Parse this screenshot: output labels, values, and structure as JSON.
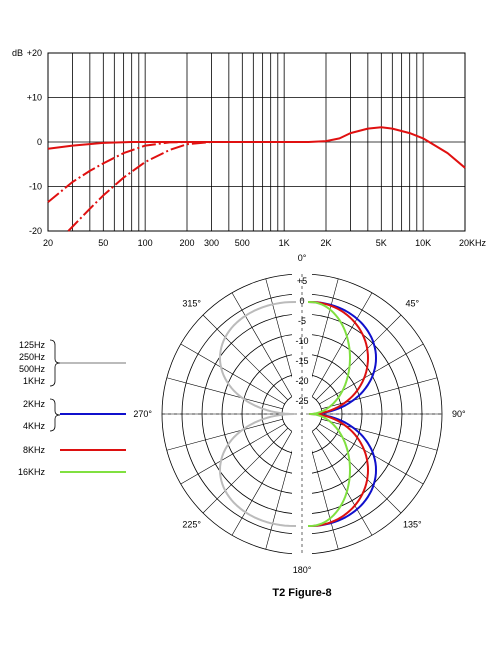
{
  "chart_data": [
    {
      "type": "line",
      "ylabel": "dB",
      "x_scale": "log",
      "xlim": [
        20,
        20000
      ],
      "ylim": [
        -20,
        20
      ],
      "grid": true,
      "x_tick_labels": [
        "20",
        "50",
        "100",
        "200",
        "300",
        "500",
        "1K",
        "2K",
        "5K",
        "10K",
        "20KHz"
      ],
      "x_tick_values": [
        20,
        50,
        100,
        200,
        300,
        500,
        1000,
        2000,
        5000,
        10000,
        20000
      ],
      "y_tick_labels": [
        "+20",
        "+10",
        "0",
        "-10",
        "-20"
      ],
      "y_tick_values": [
        20,
        10,
        0,
        -10,
        -20
      ],
      "series": [
        {
          "style": "solid",
          "color": "#e01010",
          "x": [
            20,
            30,
            50,
            80,
            120,
            200,
            500,
            1000,
            1500,
            2000,
            2500,
            3000,
            4000,
            5000,
            6000,
            8000,
            10000,
            15000,
            20000
          ],
          "y": [
            -1.5,
            -0.8,
            -0.2,
            0,
            0,
            0,
            0,
            0,
            0,
            0.2,
            0.8,
            2,
            3,
            3.3,
            3,
            2,
            0.8,
            -2.5,
            -5.8
          ]
        },
        {
          "style": "dashed",
          "color": "#e01010",
          "x": [
            20,
            30,
            40,
            50,
            70,
            100,
            150,
            200,
            300
          ],
          "y": [
            -13.5,
            -9,
            -6.5,
            -4.8,
            -2.5,
            -0.8,
            -0.1,
            0,
            0
          ]
        },
        {
          "style": "dashed",
          "color": "#e01010",
          "x": [
            28,
            40,
            50,
            70,
            100,
            150,
            200,
            300,
            400
          ],
          "y": [
            -20,
            -15,
            -12,
            -8,
            -4.5,
            -1.8,
            -0.5,
            0,
            0
          ]
        }
      ]
    },
    {
      "type": "polar",
      "title": "T2 Figure-8",
      "r_tick_labels": [
        "+5",
        "0",
        "-5",
        "-10",
        "-15",
        "-20",
        "-25"
      ],
      "r_tick_values": [
        5,
        0,
        -5,
        -10,
        -15,
        -20,
        -25
      ],
      "rlim": [
        -30,
        5
      ],
      "angle_labels": [
        "0°",
        "45°",
        "90°",
        "135°",
        "180°",
        "225°",
        "270°",
        "315°"
      ],
      "angle_values": [
        0,
        45,
        90,
        135,
        180,
        225,
        270,
        315
      ],
      "legend": [
        {
          "labels": [
            "125Hz",
            "250Hz",
            "500Hz",
            "1KHz"
          ],
          "color": "#bbbbbb"
        },
        {
          "labels": [
            "2KHz",
            "4KHz"
          ],
          "color": "#1010cc"
        },
        {
          "labels": [
            "8KHz"
          ],
          "color": "#dd1010"
        },
        {
          "labels": [
            "16KHz"
          ],
          "color": "#80e040"
        }
      ],
      "series": [
        {
          "name_index": 0,
          "color": "#bbbbbb",
          "pattern": "figure-8",
          "side": "left"
        },
        {
          "name_index": 1,
          "color": "#1010cc",
          "pattern": "figure-8",
          "side": "right"
        },
        {
          "name_index": 2,
          "color": "#dd1010",
          "pattern": "figure-8",
          "side": "right"
        },
        {
          "name_index": 3,
          "color": "#80e040",
          "pattern": "figure-8",
          "side": "right"
        }
      ]
    }
  ]
}
